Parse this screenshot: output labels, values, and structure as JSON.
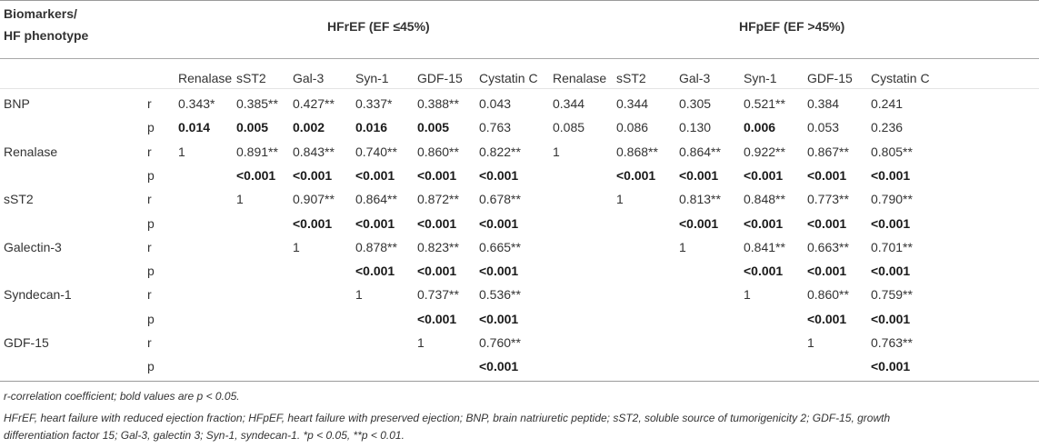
{
  "header": {
    "corner": [
      "Biomarkers/",
      "HF phenotype"
    ],
    "group1": "HFrEF (EF ≤45%)",
    "group2": "HFpEF (EF >45%)"
  },
  "columns": [
    "Renalase",
    "sST2",
    "Gal-3",
    "Syn-1",
    "GDF-15",
    "Cystatin C",
    "Renalase",
    "sST2",
    "Gal-3",
    "Syn-1",
    "GDF-15",
    "Cystatin C"
  ],
  "rows": [
    {
      "label": "BNP",
      "rp": "r",
      "cells": [
        "0.343*",
        "0.385**",
        "0.427**",
        "0.337*",
        "0.388**",
        "0.043",
        "0.344",
        "0.344",
        "0.305",
        "0.521**",
        "0.384",
        "0.241"
      ],
      "bold": [
        false,
        false,
        false,
        false,
        false,
        false,
        false,
        false,
        false,
        false,
        false,
        false
      ]
    },
    {
      "label": "",
      "rp": "p",
      "cells": [
        "0.014",
        "0.005",
        "0.002",
        "0.016",
        "0.005",
        "0.763",
        "0.085",
        "0.086",
        "0.130",
        "0.006",
        "0.053",
        "0.236"
      ],
      "bold": [
        true,
        true,
        true,
        true,
        true,
        false,
        false,
        false,
        false,
        true,
        false,
        false
      ]
    },
    {
      "label": "Renalase",
      "rp": "r",
      "cells": [
        "1",
        "0.891**",
        "0.843**",
        "0.740**",
        "0.860**",
        "0.822**",
        "1",
        "0.868**",
        "0.864**",
        "0.922**",
        "0.867**",
        "0.805**"
      ],
      "bold": [
        false,
        false,
        false,
        false,
        false,
        false,
        false,
        false,
        false,
        false,
        false,
        false
      ]
    },
    {
      "label": "",
      "rp": "p",
      "cells": [
        "",
        "<0.001",
        "<0.001",
        "<0.001",
        "<0.001",
        "<0.001",
        "",
        "<0.001",
        "<0.001",
        "<0.001",
        "<0.001",
        "<0.001"
      ],
      "bold": [
        false,
        true,
        true,
        true,
        true,
        true,
        false,
        true,
        true,
        true,
        true,
        true
      ]
    },
    {
      "label": "sST2",
      "rp": "r",
      "cells": [
        "",
        "1",
        "0.907**",
        "0.864**",
        "0.872**",
        "0.678**",
        "",
        "1",
        "0.813**",
        "0.848**",
        "0.773**",
        "0.790**"
      ],
      "bold": [
        false,
        false,
        false,
        false,
        false,
        false,
        false,
        false,
        false,
        false,
        false,
        false
      ]
    },
    {
      "label": "",
      "rp": "p",
      "cells": [
        "",
        "",
        "<0.001",
        "<0.001",
        "<0.001",
        "<0.001",
        "",
        "",
        "<0.001",
        "<0.001",
        "<0.001",
        "<0.001"
      ],
      "bold": [
        false,
        false,
        true,
        true,
        true,
        true,
        false,
        false,
        true,
        true,
        true,
        true
      ]
    },
    {
      "label": "Galectin-3",
      "rp": "r",
      "cells": [
        "",
        "",
        "1",
        "0.878**",
        "0.823**",
        "0.665**",
        "",
        "",
        "1",
        "0.841**",
        "0.663**",
        "0.701**"
      ],
      "bold": [
        false,
        false,
        false,
        false,
        false,
        false,
        false,
        false,
        false,
        false,
        false,
        false
      ]
    },
    {
      "label": "",
      "rp": "p",
      "cells": [
        "",
        "",
        "",
        "<0.001",
        "<0.001",
        "<0.001",
        "",
        "",
        "",
        "<0.001",
        "<0.001",
        "<0.001"
      ],
      "bold": [
        false,
        false,
        false,
        true,
        true,
        true,
        false,
        false,
        false,
        true,
        true,
        true
      ]
    },
    {
      "label": "Syndecan-1",
      "rp": "r",
      "cells": [
        "",
        "",
        "",
        "1",
        "0.737**",
        "0.536**",
        "",
        "",
        "",
        "1",
        "0.860**",
        "0.759**"
      ],
      "bold": [
        false,
        false,
        false,
        false,
        false,
        false,
        false,
        false,
        false,
        false,
        false,
        false
      ]
    },
    {
      "label": "",
      "rp": "p",
      "cells": [
        "",
        "",
        "",
        "",
        "<0.001",
        "<0.001",
        "",
        "",
        "",
        "",
        "<0.001",
        "<0.001"
      ],
      "bold": [
        false,
        false,
        false,
        false,
        true,
        true,
        false,
        false,
        false,
        false,
        true,
        true
      ]
    },
    {
      "label": "GDF-15",
      "rp": "r",
      "cells": [
        "",
        "",
        "",
        "",
        "1",
        "0.760**",
        "",
        "",
        "",
        "",
        "1",
        "0.763**"
      ],
      "bold": [
        false,
        false,
        false,
        false,
        false,
        false,
        false,
        false,
        false,
        false,
        false,
        false
      ]
    },
    {
      "label": "",
      "rp": "p",
      "cells": [
        "",
        "",
        "",
        "",
        "",
        "<0.001",
        "",
        "",
        "",
        "",
        "",
        "<0.001"
      ],
      "bold": [
        false,
        false,
        false,
        false,
        false,
        true,
        false,
        false,
        false,
        false,
        false,
        true
      ]
    }
  ],
  "footnotes": [
    "r-correlation coefficient; bold values are p < 0.05.",
    "HFrEF, heart failure with reduced ejection fraction; HFpEF, heart failure with preserved ejection; BNP, brain natriuretic peptide; sST2, soluble source of tumorigenicity 2; GDF-15, growth",
    "differentiation factor 15; Gal-3, galectin 3; Syn-1, syndecan-1. *p < 0.05, **p < 0.01."
  ]
}
